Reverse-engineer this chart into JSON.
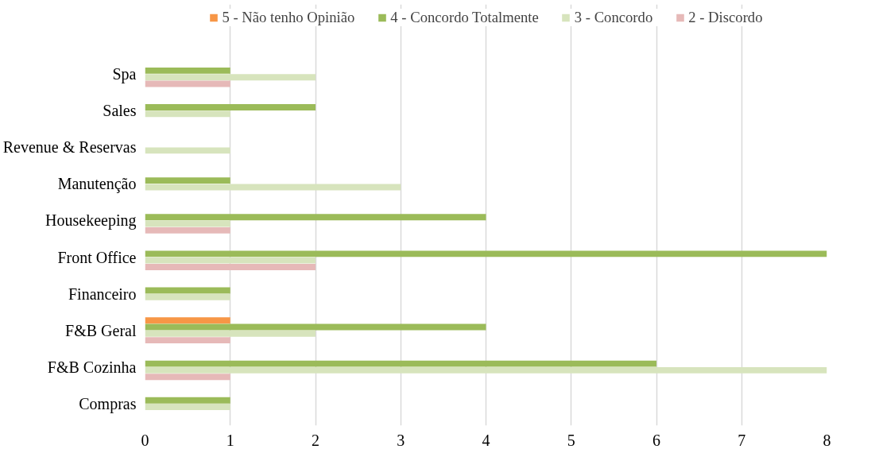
{
  "chart_data": {
    "type": "bar",
    "orientation": "horizontal",
    "categories": [
      "Spa",
      "Sales",
      "Revenue & Reservas",
      "Manutenção",
      "Housekeeping",
      "Front Office",
      "Financeiro",
      "F&B Geral",
      "F&B Cozinha",
      "Compras"
    ],
    "series": [
      {
        "name": "5 - Não tenho Opinião",
        "color": "#f79646",
        "values": [
          null,
          null,
          null,
          null,
          null,
          null,
          null,
          1,
          null,
          null
        ]
      },
      {
        "name": "4 - Concordo Totalmente",
        "color": "#9bbb59",
        "values": [
          1,
          2,
          null,
          1,
          4,
          8,
          1,
          4,
          6,
          1
        ]
      },
      {
        "name": "3 - Concordo",
        "color": "#d7e4bd",
        "values": [
          2,
          1,
          1,
          3,
          1,
          2,
          1,
          2,
          8,
          1
        ]
      },
      {
        "name": "2 - Discordo",
        "color": "#e6b9b8",
        "values": [
          1,
          null,
          null,
          null,
          1,
          2,
          null,
          1,
          1,
          null
        ]
      }
    ],
    "xlim": [
      0,
      8
    ],
    "xticks": [
      0,
      1,
      2,
      3,
      4,
      5,
      6,
      7,
      8
    ],
    "grid": "x",
    "legend": "top"
  }
}
